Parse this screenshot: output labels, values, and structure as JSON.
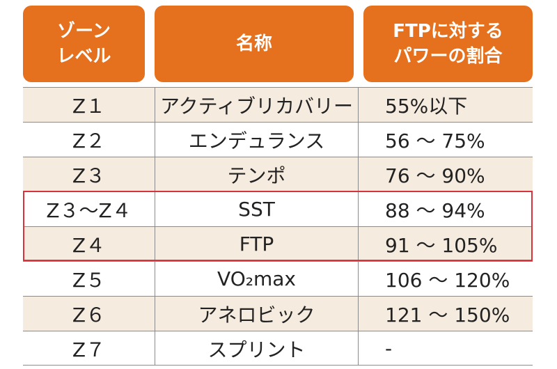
{
  "header": [
    [
      "ゾーン",
      "レベル"
    ],
    [
      "名称"
    ],
    [
      "FTPに対する",
      "パワーの割合"
    ]
  ],
  "table": {
    "rows": [
      [
        "Z１",
        "アクティブリカバリー",
        "55%以下"
      ],
      [
        "Z２",
        "エンデュランス",
        "56 ～ 75%"
      ],
      [
        "Z３",
        "テンポ",
        "76 ～ 90%"
      ],
      [
        "Z３～Z４",
        "SST",
        "88 ～ 94%"
      ],
      [
        "Z４",
        "FTP",
        "91 ～ 105%"
      ],
      [
        "Z５",
        "VO₂max",
        "106 ～ 120%"
      ],
      [
        "Z６",
        "アネロビック",
        "121 ～ 150%"
      ],
      [
        "Z７",
        "スプリント",
        "-"
      ]
    ]
  }
}
